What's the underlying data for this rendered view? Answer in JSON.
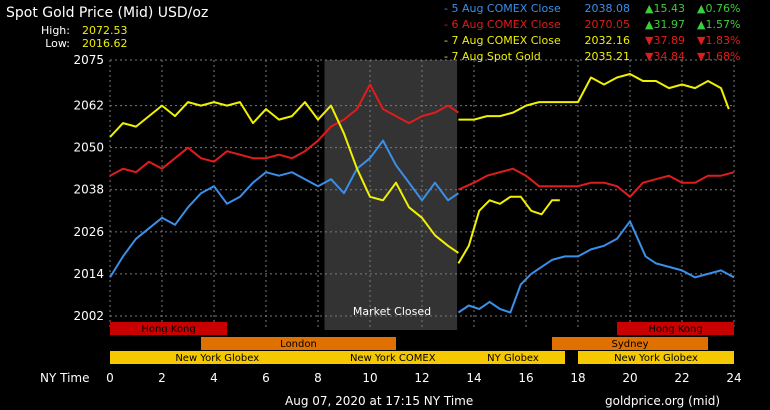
{
  "header": {
    "title": "Spot Gold Price (Mid) USD/oz",
    "high_label": "High:",
    "high_value": "2072.53",
    "low_label": "Low:",
    "low_value": "2016.62"
  },
  "legend": [
    {
      "label": "- 5 Aug COMEX Close",
      "price": "2038.08",
      "arrow": "▲",
      "change": "15.43",
      "pct_arrow": "▲",
      "pct": "0.76%",
      "color": "#3a8fe8",
      "change_color": "#3ccc3c"
    },
    {
      "label": "- 6 Aug COMEX Close",
      "price": "2070.05",
      "arrow": "▲",
      "change": "31.97",
      "pct_arrow": "▲",
      "pct": "1.57%",
      "color": "#e01c1c",
      "change_color": "#3ccc3c"
    },
    {
      "label": "- 7 Aug COMEX Close",
      "price": "2032.16",
      "arrow": "▼",
      "change": "37.89",
      "pct_arrow": "▼",
      "pct": "1.83%",
      "color": "#f0f000",
      "change_color": "#e01c1c"
    },
    {
      "label": "- 7 Aug Spot Gold",
      "price": "2035.21",
      "arrow": "▼",
      "change": "34.84",
      "pct_arrow": "▼",
      "pct": "1.68%",
      "color": "#f0f000",
      "change_color": "#e01c1c"
    }
  ],
  "x_axis_label": "NY Time",
  "footer": {
    "timestamp": "Aug 07, 2020 at 17:15 NY Time",
    "source": "goldprice.org (mid)"
  },
  "market_closed_label": "Market Closed",
  "sessions": [
    {
      "label": "Hong Kong",
      "start": 0,
      "end": 4.5,
      "color": "#c80000",
      "row": 0
    },
    {
      "label": "Hong Kong",
      "start": 19.5,
      "end": 24,
      "color": "#c80000",
      "row": 0
    },
    {
      "label": "London",
      "start": 3.5,
      "end": 11,
      "color": "#e07000",
      "row": 1
    },
    {
      "label": "Sydney",
      "start": 17,
      "end": 23,
      "color": "#e07000",
      "row": 1
    },
    {
      "label": "New York Globex",
      "start": 0,
      "end": 8.25,
      "color": "#f5c800",
      "row": 2
    },
    {
      "label": "New York COMEX",
      "start": 8.25,
      "end": 13.5,
      "color": "#f5c800",
      "row": 2
    },
    {
      "label": "NY Globex",
      "start": 13.5,
      "end": 17.5,
      "color": "#f5c800",
      "row": 2
    },
    {
      "label": "New York Globex",
      "start": 18,
      "end": 24,
      "color": "#f5c800",
      "row": 2
    }
  ],
  "colors": {
    "background": "#000000",
    "grid": "#7a7a7a",
    "closed_band": "#333333"
  },
  "chart_data": {
    "type": "line",
    "xlabel": "NY Time",
    "ylabel": "",
    "xlim": [
      0,
      24
    ],
    "ylim": [
      1998,
      2075
    ],
    "x_ticks": [
      0,
      2,
      4,
      6,
      8,
      10,
      12,
      14,
      16,
      18,
      20,
      22,
      24
    ],
    "y_ticks": [
      2002,
      2014,
      2026,
      2038,
      2050,
      2062,
      2075
    ],
    "closed_range": [
      8.25,
      13.35
    ],
    "series": [
      {
        "name": "5 Aug COMEX Close",
        "color": "#3a8fe8",
        "x": [
          0,
          0.5,
          1,
          1.5,
          2,
          2.5,
          3,
          3.5,
          4,
          4.5,
          5,
          5.5,
          6,
          6.5,
          7,
          7.5,
          8,
          8.5,
          9,
          9.5,
          10,
          10.5,
          11,
          11.5,
          12,
          12.5,
          13,
          13.4
        ],
        "y": [
          2013,
          2019,
          2024,
          2027,
          2030,
          2028,
          2033,
          2037,
          2039,
          2034,
          2036,
          2040,
          2043,
          2042,
          2043,
          2041,
          2039,
          2041,
          2037,
          2044,
          2047,
          2052,
          2045,
          2040,
          2035,
          2040,
          2035,
          2037
        ]
      },
      {
        "name": "5 Aug COMEX Close",
        "color": "#3a8fe8",
        "x": [
          13.4,
          13.8,
          14.2,
          14.6,
          15,
          15.4,
          15.8,
          16.2,
          16.6,
          17,
          17.5,
          18,
          18.5,
          19,
          19.5,
          20,
          20.3,
          20.6,
          21,
          21.5,
          22,
          22.5,
          23,
          23.5,
          24
        ],
        "y": [
          2003,
          2005,
          2004,
          2006,
          2004,
          2003,
          2011,
          2014,
          2016,
          2018,
          2019,
          2019,
          2021,
          2022,
          2024,
          2029,
          2024,
          2019,
          2017,
          2016,
          2015,
          2013,
          2014,
          2015,
          2013
        ]
      },
      {
        "name": "6 Aug COMEX Close",
        "color": "#e01c1c",
        "x": [
          0,
          0.5,
          1,
          1.5,
          2,
          2.5,
          3,
          3.5,
          4,
          4.5,
          5,
          5.5,
          6,
          6.5,
          7,
          7.5,
          8,
          8.5,
          9,
          9.5,
          10,
          10.5,
          11,
          11.5,
          12,
          12.5,
          13,
          13.4
        ],
        "y": [
          2042,
          2044,
          2043,
          2046,
          2044,
          2047,
          2050,
          2047,
          2046,
          2049,
          2048,
          2047,
          2047,
          2048,
          2047,
          2049,
          2052,
          2056,
          2058,
          2061,
          2068,
          2061,
          2059,
          2057,
          2059,
          2060,
          2062,
          2060
        ]
      },
      {
        "name": "6 Aug COMEX Close",
        "color": "#e01c1c",
        "x": [
          13.4,
          14,
          14.5,
          15,
          15.5,
          16,
          16.5,
          17,
          17.5,
          18,
          18.5,
          19,
          19.5,
          20,
          20.5,
          21,
          21.5,
          22,
          22.5,
          23,
          23.5,
          24
        ],
        "y": [
          2038,
          2040,
          2042,
          2043,
          2044,
          2042,
          2039,
          2039,
          2039,
          2039,
          2040,
          2040,
          2039,
          2036,
          2040,
          2041,
          2042,
          2040,
          2040,
          2042,
          2042,
          2043
        ]
      },
      {
        "name": "7 Aug COMEX Close",
        "color": "#f0f000",
        "x": [
          0,
          0.5,
          1,
          1.5,
          2,
          2.5,
          3,
          3.5,
          4,
          4.5,
          5,
          5.5,
          6,
          6.5,
          7,
          7.5,
          8,
          8.5,
          9,
          9.5,
          10,
          10.5,
          11,
          11.5,
          12,
          12.5,
          13,
          13.4
        ],
        "y": [
          2053,
          2057,
          2056,
          2059,
          2062,
          2059,
          2063,
          2062,
          2063,
          2062,
          2063,
          2057,
          2061,
          2058,
          2059,
          2063,
          2058,
          2062,
          2054,
          2044,
          2036,
          2035,
          2040,
          2033,
          2030,
          2025,
          2022,
          2020
        ]
      },
      {
        "name": "7 Aug COMEX Close",
        "color": "#f0f000",
        "x": [
          13.4,
          13.8,
          14.2,
          14.6,
          15,
          15.4,
          15.8,
          16.2,
          16.6,
          17,
          17.3
        ],
        "y": [
          2017,
          2022,
          2032,
          2035,
          2034,
          2036,
          2036,
          2032,
          2031,
          2035,
          2035
        ]
      },
      {
        "name": "7 Aug Spot Gold",
        "color": "#f0f000",
        "x": [
          13.4,
          14,
          14.5,
          15,
          15.5,
          16,
          16.5,
          17,
          17.5,
          18,
          18.5,
          19,
          19.5,
          20,
          20.5,
          21,
          21.5,
          22,
          22.5,
          23,
          23.5,
          23.8
        ],
        "y": [
          2058,
          2058,
          2059,
          2059,
          2060,
          2062,
          2063,
          2063,
          2063,
          2063,
          2070,
          2068,
          2070,
          2071,
          2069,
          2069,
          2067,
          2068,
          2067,
          2069,
          2067,
          2061
        ]
      }
    ]
  }
}
